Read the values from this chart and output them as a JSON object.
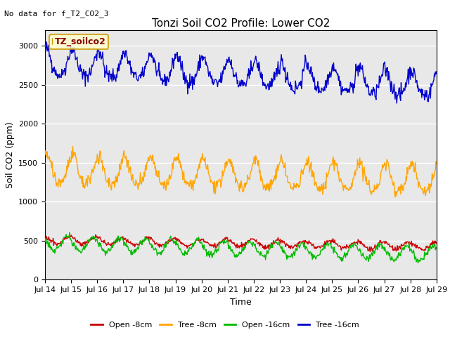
{
  "title": "Tonzi Soil CO2 Profile: Lower CO2",
  "note": "No data for f_T2_CO2_3",
  "ylabel": "Soil CO2 (ppm)",
  "xlabel": "Time",
  "legend_label": "TZ_soilco2",
  "ylim": [
    0,
    3200
  ],
  "yticks": [
    0,
    500,
    1000,
    1500,
    2000,
    2500,
    3000
  ],
  "start_day": 14,
  "end_day": 29,
  "colors": {
    "open_8cm": "#cc0000",
    "tree_8cm": "#ffa500",
    "open_16cm": "#00bb00",
    "tree_16cm": "#0000cc"
  },
  "legend_entries": [
    {
      "label": "Open -8cm",
      "color": "#cc0000"
    },
    {
      "label": "Tree -8cm",
      "color": "#ffa500"
    },
    {
      "label": "Open -16cm",
      "color": "#00bb00"
    },
    {
      "label": "Tree -16cm",
      "color": "#0000cc"
    }
  ],
  "bg_color": "#e8e8e8",
  "fig_bg": "#ffffff",
  "grid_color": "#ffffff",
  "title_fontsize": 11,
  "axis_fontsize": 9,
  "tick_fontsize": 8,
  "note_fontsize": 8,
  "legend_box_color": "#ffffcc",
  "legend_box_edge": "#cc9900"
}
